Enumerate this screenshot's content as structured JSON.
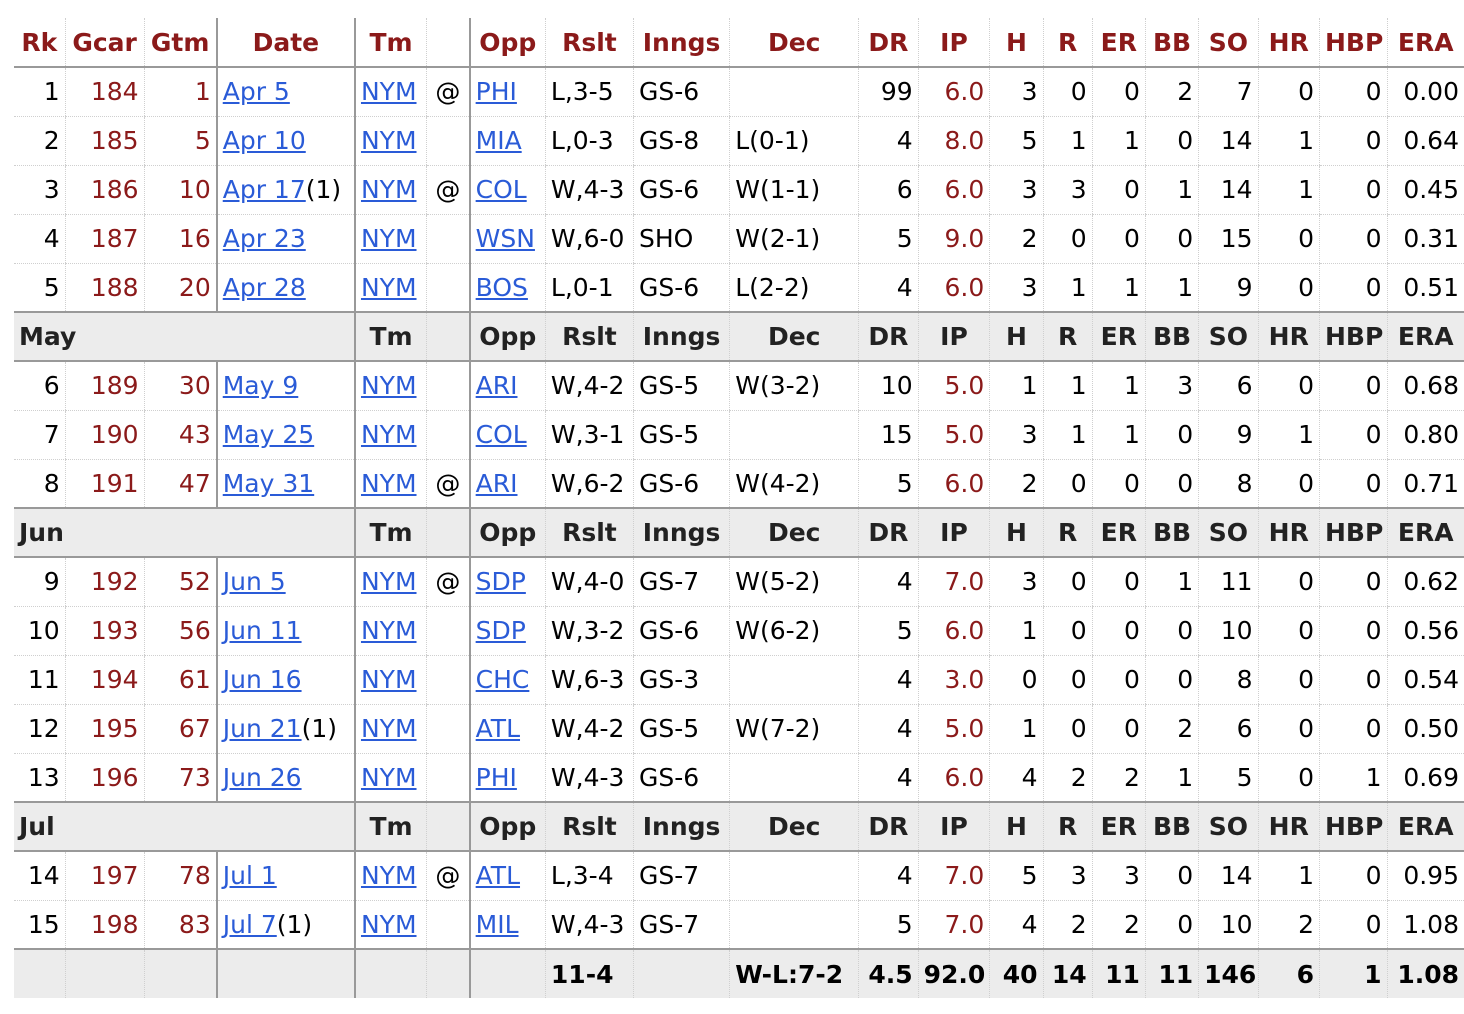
{
  "columns": [
    "Rk",
    "Gcar",
    "Gtm",
    "Date",
    "Tm",
    "",
    "Opp",
    "Rslt",
    "Inngs",
    "Dec",
    "DR",
    "IP",
    "H",
    "R",
    "ER",
    "BB",
    "SO",
    "HR",
    "HBP",
    "ERA"
  ],
  "sections": [
    {
      "label": "",
      "rows": [
        {
          "rk": "1",
          "gcar": "184",
          "gtm": "1",
          "date": "Apr 5",
          "dsuf": "",
          "tm": "NYM",
          "at": "@",
          "opp": "PHI",
          "rslt": "L,3-5",
          "inngs": "GS-6",
          "dec": "",
          "dr": "99",
          "ip": "6.0",
          "h": "3",
          "r": "0",
          "er": "0",
          "bb": "2",
          "so": "7",
          "hr": "0",
          "hbp": "0",
          "era": "0.00"
        },
        {
          "rk": "2",
          "gcar": "185",
          "gtm": "5",
          "date": "Apr 10",
          "dsuf": "",
          "tm": "NYM",
          "at": "",
          "opp": "MIA",
          "rslt": "L,0-3",
          "inngs": "GS-8",
          "dec": "L(0-1)",
          "dr": "4",
          "ip": "8.0",
          "h": "5",
          "r": "1",
          "er": "1",
          "bb": "0",
          "so": "14",
          "hr": "1",
          "hbp": "0",
          "era": "0.64"
        },
        {
          "rk": "3",
          "gcar": "186",
          "gtm": "10",
          "date": "Apr 17",
          "dsuf": "(1)",
          "tm": "NYM",
          "at": "@",
          "opp": "COL",
          "rslt": "W,4-3",
          "inngs": "GS-6",
          "dec": "W(1-1)",
          "dr": "6",
          "ip": "6.0",
          "h": "3",
          "r": "3",
          "er": "0",
          "bb": "1",
          "so": "14",
          "hr": "1",
          "hbp": "0",
          "era": "0.45"
        },
        {
          "rk": "4",
          "gcar": "187",
          "gtm": "16",
          "date": "Apr 23",
          "dsuf": "",
          "tm": "NYM",
          "at": "",
          "opp": "WSN",
          "rslt": "W,6-0",
          "inngs": "SHO",
          "dec": "W(2-1)",
          "dr": "5",
          "ip": "9.0",
          "h": "2",
          "r": "0",
          "er": "0",
          "bb": "0",
          "so": "15",
          "hr": "0",
          "hbp": "0",
          "era": "0.31"
        },
        {
          "rk": "5",
          "gcar": "188",
          "gtm": "20",
          "date": "Apr 28",
          "dsuf": "",
          "tm": "NYM",
          "at": "",
          "opp": "BOS",
          "rslt": "L,0-1",
          "inngs": "GS-6",
          "dec": "L(2-2)",
          "dr": "4",
          "ip": "6.0",
          "h": "3",
          "r": "1",
          "er": "1",
          "bb": "1",
          "so": "9",
          "hr": "0",
          "hbp": "0",
          "era": "0.51"
        }
      ]
    },
    {
      "label": "May",
      "rows": [
        {
          "rk": "6",
          "gcar": "189",
          "gtm": "30",
          "date": "May 9",
          "dsuf": "",
          "tm": "NYM",
          "at": "",
          "opp": "ARI",
          "rslt": "W,4-2",
          "inngs": "GS-5",
          "dec": "W(3-2)",
          "dr": "10",
          "ip": "5.0",
          "h": "1",
          "r": "1",
          "er": "1",
          "bb": "3",
          "so": "6",
          "hr": "0",
          "hbp": "0",
          "era": "0.68"
        },
        {
          "rk": "7",
          "gcar": "190",
          "gtm": "43",
          "date": "May 25",
          "dsuf": "",
          "tm": "NYM",
          "at": "",
          "opp": "COL",
          "rslt": "W,3-1",
          "inngs": "GS-5",
          "dec": "",
          "dr": "15",
          "ip": "5.0",
          "h": "3",
          "r": "1",
          "er": "1",
          "bb": "0",
          "so": "9",
          "hr": "1",
          "hbp": "0",
          "era": "0.80"
        },
        {
          "rk": "8",
          "gcar": "191",
          "gtm": "47",
          "date": "May 31",
          "dsuf": "",
          "tm": "NYM",
          "at": "@",
          "opp": "ARI",
          "rslt": "W,6-2",
          "inngs": "GS-6",
          "dec": "W(4-2)",
          "dr": "5",
          "ip": "6.0",
          "h": "2",
          "r": "0",
          "er": "0",
          "bb": "0",
          "so": "8",
          "hr": "0",
          "hbp": "0",
          "era": "0.71"
        }
      ]
    },
    {
      "label": "Jun",
      "rows": [
        {
          "rk": "9",
          "gcar": "192",
          "gtm": "52",
          "date": "Jun 5",
          "dsuf": "",
          "tm": "NYM",
          "at": "@",
          "opp": "SDP",
          "rslt": "W,4-0",
          "inngs": "GS-7",
          "dec": "W(5-2)",
          "dr": "4",
          "ip": "7.0",
          "h": "3",
          "r": "0",
          "er": "0",
          "bb": "1",
          "so": "11",
          "hr": "0",
          "hbp": "0",
          "era": "0.62"
        },
        {
          "rk": "10",
          "gcar": "193",
          "gtm": "56",
          "date": "Jun 11",
          "dsuf": "",
          "tm": "NYM",
          "at": "",
          "opp": "SDP",
          "rslt": "W,3-2",
          "inngs": "GS-6",
          "dec": "W(6-2)",
          "dr": "5",
          "ip": "6.0",
          "h": "1",
          "r": "0",
          "er": "0",
          "bb": "0",
          "so": "10",
          "hr": "0",
          "hbp": "0",
          "era": "0.56"
        },
        {
          "rk": "11",
          "gcar": "194",
          "gtm": "61",
          "date": "Jun 16",
          "dsuf": "",
          "tm": "NYM",
          "at": "",
          "opp": "CHC",
          "rslt": "W,6-3",
          "inngs": "GS-3",
          "dec": "",
          "dr": "4",
          "ip": "3.0",
          "h": "0",
          "r": "0",
          "er": "0",
          "bb": "0",
          "so": "8",
          "hr": "0",
          "hbp": "0",
          "era": "0.54"
        },
        {
          "rk": "12",
          "gcar": "195",
          "gtm": "67",
          "date": "Jun 21",
          "dsuf": "(1)",
          "tm": "NYM",
          "at": "",
          "opp": "ATL",
          "rslt": "W,4-2",
          "inngs": "GS-5",
          "dec": "W(7-2)",
          "dr": "4",
          "ip": "5.0",
          "h": "1",
          "r": "0",
          "er": "0",
          "bb": "2",
          "so": "6",
          "hr": "0",
          "hbp": "0",
          "era": "0.50"
        },
        {
          "rk": "13",
          "gcar": "196",
          "gtm": "73",
          "date": "Jun 26",
          "dsuf": "",
          "tm": "NYM",
          "at": "",
          "opp": "PHI",
          "rslt": "W,4-3",
          "inngs": "GS-6",
          "dec": "",
          "dr": "4",
          "ip": "6.0",
          "h": "4",
          "r": "2",
          "er": "2",
          "bb": "1",
          "so": "5",
          "hr": "0",
          "hbp": "1",
          "era": "0.69"
        }
      ]
    },
    {
      "label": "Jul",
      "rows": [
        {
          "rk": "14",
          "gcar": "197",
          "gtm": "78",
          "date": "Jul 1",
          "dsuf": "",
          "tm": "NYM",
          "at": "@",
          "opp": "ATL",
          "rslt": "L,3-4",
          "inngs": "GS-7",
          "dec": "",
          "dr": "4",
          "ip": "7.0",
          "h": "5",
          "r": "3",
          "er": "3",
          "bb": "0",
          "so": "14",
          "hr": "1",
          "hbp": "0",
          "era": "0.95"
        },
        {
          "rk": "15",
          "gcar": "198",
          "gtm": "83",
          "date": "Jul 7",
          "dsuf": "(1)",
          "tm": "NYM",
          "at": "",
          "opp": "MIL",
          "rslt": "W,4-3",
          "inngs": "GS-7",
          "dec": "",
          "dr": "5",
          "ip": "7.0",
          "h": "4",
          "r": "2",
          "er": "2",
          "bb": "0",
          "so": "10",
          "hr": "2",
          "hbp": "0",
          "era": "1.08"
        }
      ]
    }
  ],
  "totals": {
    "rslt": "11-4",
    "dec": "W-L:7-2",
    "dr": "4.5",
    "ip": "92.0",
    "h": "40",
    "r": "14",
    "er": "11",
    "bb": "11",
    "so": "146",
    "hr": "6",
    "hbp": "1",
    "era": "1.08"
  },
  "colors": {
    "header_red": "#8b1a1a",
    "link_blue": "#2a5bd7",
    "band_gray": "#ececec"
  }
}
